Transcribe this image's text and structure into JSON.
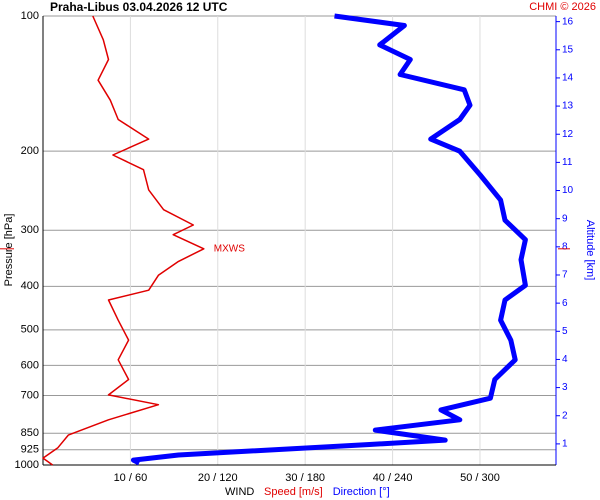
{
  "chart_data": {
    "type": "line",
    "title": "Praha-Libus    03.04.2026 12 UTC",
    "credit": "CHMI © 2026",
    "ylabel": "Pressure [hPa]",
    "y2label": "Altitude [km]",
    "xlabel": "WIND",
    "y_scale": "log",
    "y_reversed": true,
    "ylim": [
      100,
      1000
    ],
    "yticks": [
      100,
      200,
      300,
      400,
      500,
      600,
      700,
      850,
      925,
      1000
    ],
    "y2lim": [
      0.25,
      16.2
    ],
    "y2ticks": [
      1,
      2,
      3,
      4,
      5,
      6,
      7,
      8,
      9,
      10,
      11,
      12,
      13,
      14,
      15,
      16
    ],
    "xlim": [
      0,
      58.7
    ],
    "x2lim": [
      0,
      352
    ],
    "xticks": [
      {
        "value": 10,
        "label": "10 / 60"
      },
      {
        "value": 20,
        "label": "20 / 120"
      },
      {
        "value": 30,
        "label": "30 / 180"
      },
      {
        "value": 40,
        "label": "40 / 240"
      },
      {
        "value": 50,
        "label": "50 / 300"
      }
    ],
    "grid": true,
    "annotation": {
      "text": "MXWS",
      "pressure": 330,
      "color": "#e00000"
    },
    "series": [
      {
        "name": "Speed [m/s]",
        "color": "#e00000",
        "axis": "x",
        "pressure": [
          100,
          113,
          125,
          139,
          154,
          170,
          188,
          204,
          220,
          244,
          270,
          292,
          307,
          330,
          352,
          378,
          408,
          429,
          476,
          527,
          583,
          645,
          698,
          734,
          793,
          858,
          915,
          965,
          1000
        ],
        "values": [
          5.7,
          6.9,
          7.5,
          6.3,
          7.7,
          8.6,
          12.1,
          8.0,
          11.5,
          12.1,
          13.8,
          17.2,
          14.9,
          18.4,
          15.5,
          13.2,
          12.1,
          7.5,
          8.6,
          9.8,
          8.6,
          9.8,
          7.5,
          13.2,
          7.5,
          2.9,
          1.7,
          0,
          1.1
        ]
      },
      {
        "name": "Direction [°]",
        "color": "#0000ff",
        "axis": "x2",
        "pressure": [
          100,
          105,
          116,
          125,
          135,
          146,
          158,
          170,
          188,
          200,
          226,
          257,
          285,
          315,
          349,
          398,
          429,
          476,
          527,
          583,
          645,
          710,
          754,
          793,
          836,
          880,
          900,
          950,
          975,
          990
        ],
        "values": [
          200,
          248,
          231,
          252,
          245,
          289,
          293,
          286,
          266,
          286,
          300,
          314,
          317,
          331,
          328,
          331,
          317,
          314,
          321,
          324,
          310,
          307,
          273,
          286,
          228,
          276,
          224,
          93,
          62,
          66
        ]
      }
    ]
  }
}
